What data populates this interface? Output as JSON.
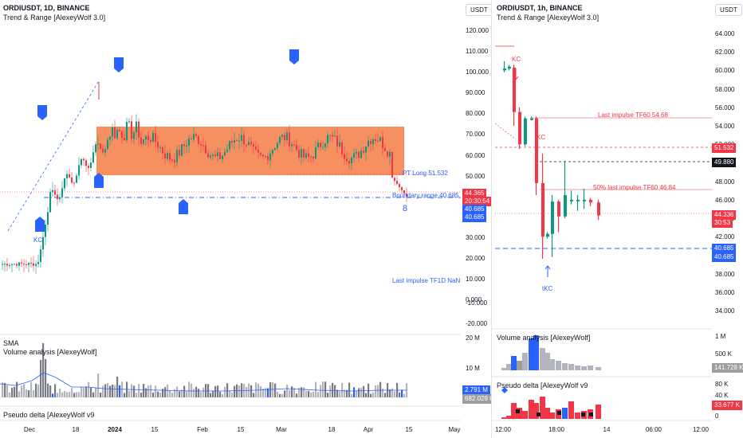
{
  "left": {
    "title": "ORDIUSDT, 1D, BINANCE",
    "indicator": "Trend & Range [AlexeyWolf 3.0]",
    "currency": "USDT",
    "price_axis": [
      "120.000",
      "110.000",
      "100.000",
      "90.000",
      "80.000",
      "70.000",
      "60.000",
      "50.000",
      "30.000",
      "20.000",
      "10.000",
      "0.000",
      "-10.000",
      "-20.000"
    ],
    "price_tags": {
      "last": "44.365",
      "countdown": "20:30:54",
      "boundary_1": "40.685",
      "boundary_2": "40.685"
    },
    "annotations": {
      "pt_long": "PT Long 51.532",
      "boundary": "Boundary range 40.685",
      "last_impulse": "Last impulse TF1D NaN",
      "kc": "KC",
      "eight": "8"
    },
    "sma_label": "SMA",
    "volume_label": "Volume analysis [AlexeyWolf]",
    "volume_axis": [
      "20 M",
      "10 M"
    ],
    "volume_tags": {
      "blue": "2.791 M",
      "gray": "682.029 K"
    },
    "pseudo_label": "Pseudo delta [AlexeyWolf v9",
    "time_axis": [
      "Dec",
      "18",
      "2024",
      "15",
      "Feb",
      "15",
      "Mar",
      "18",
      "Apr",
      "15",
      "May"
    ]
  },
  "right": {
    "title": "ORDIUSDT, 1h, BINANCE",
    "indicator": "Trend & Range [AlexeyWolf 3.0]",
    "currency": "USDT",
    "price_axis": [
      "64.000",
      "62.000",
      "60.000",
      "58.000",
      "56.000",
      "54.000",
      "52.000",
      "50.000",
      "48.000",
      "46.000",
      "44.000",
      "42.000",
      "40.000",
      "38.000",
      "36.000",
      "34.000"
    ],
    "price_tags": {
      "pt": "51.532",
      "crosshair": "49.880",
      "last": "44.336",
      "countdown": "30:53",
      "boundary_1": "40.685",
      "boundary_2": "40.685"
    },
    "annotations": {
      "last_impulse": "Last impulse TF60 54.68",
      "fifty": "50% last impulse TF60 46.84",
      "kc_top": "KC",
      "kc_mid": "KC",
      "tkc": "tKC"
    },
    "volume_label": "Volume analysis [AlexeyWolf]",
    "volume_axis": [
      "1 M",
      "500 K"
    ],
    "volume_tag": "141.728 K",
    "pseudo_label": "Pseudo delta [AlexeyWolf v9",
    "pseudo_axis": [
      "80 K",
      "40 K",
      "0"
    ],
    "pseudo_tag": "33.677 K",
    "time_axis": [
      "12:00",
      "18:00",
      "14",
      "06:00",
      "12:00"
    ]
  },
  "colors": {
    "up": "#089981",
    "down": "#f23645",
    "range": "#f57c44",
    "blue": "#2962ff",
    "gray": "#9e9e9e"
  }
}
